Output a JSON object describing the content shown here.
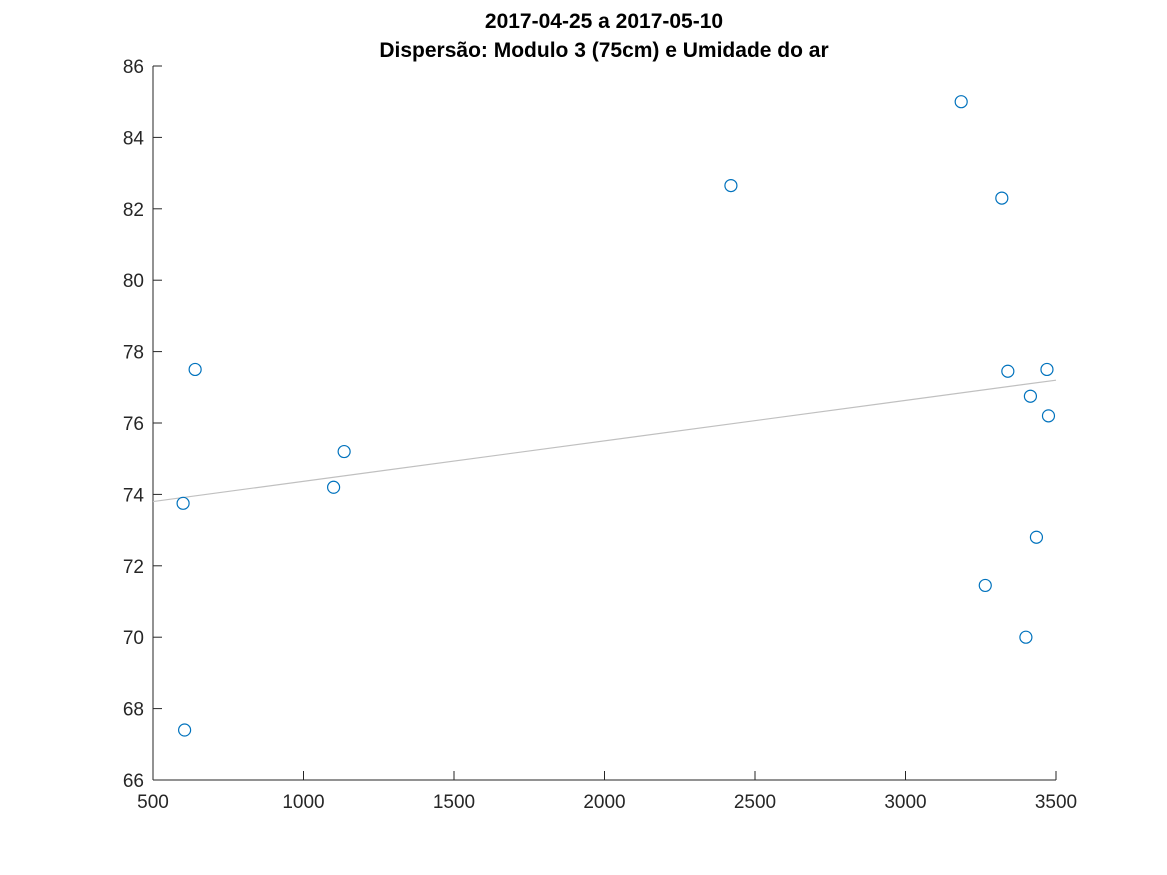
{
  "chart_data": {
    "type": "scatter",
    "title": [
      "2017-04-25 a 2017-05-10",
      "Dispersão: Modulo 3 (75cm) e Umidade do ar"
    ],
    "xlabel": "",
    "ylabel": "",
    "xlim": [
      500,
      3500
    ],
    "ylim": [
      66,
      86
    ],
    "xticks": [
      500,
      1000,
      1500,
      2000,
      2500,
      3000,
      3500
    ],
    "yticks": [
      66,
      68,
      70,
      72,
      74,
      76,
      78,
      80,
      82,
      84,
      86
    ],
    "grid": false,
    "legend": "none",
    "marker": "circle-open",
    "point_color": "#0072BD",
    "trendline_color": "#C0C0C0",
    "points": [
      {
        "x": 640,
        "y": 77.5
      },
      {
        "x": 600,
        "y": 73.75
      },
      {
        "x": 605,
        "y": 67.4
      },
      {
        "x": 1100,
        "y": 74.2
      },
      {
        "x": 1135,
        "y": 75.2
      },
      {
        "x": 2420,
        "y": 82.65
      },
      {
        "x": 3185,
        "y": 85.0
      },
      {
        "x": 3320,
        "y": 82.3
      },
      {
        "x": 3340,
        "y": 77.45
      },
      {
        "x": 3470,
        "y": 77.5
      },
      {
        "x": 3415,
        "y": 76.75
      },
      {
        "x": 3475,
        "y": 76.2
      },
      {
        "x": 3435,
        "y": 72.8
      },
      {
        "x": 3265,
        "y": 71.45
      },
      {
        "x": 3400,
        "y": 70.0
      }
    ],
    "trendline": {
      "x": [
        500,
        3500
      ],
      "y": [
        73.8,
        77.2
      ]
    }
  }
}
